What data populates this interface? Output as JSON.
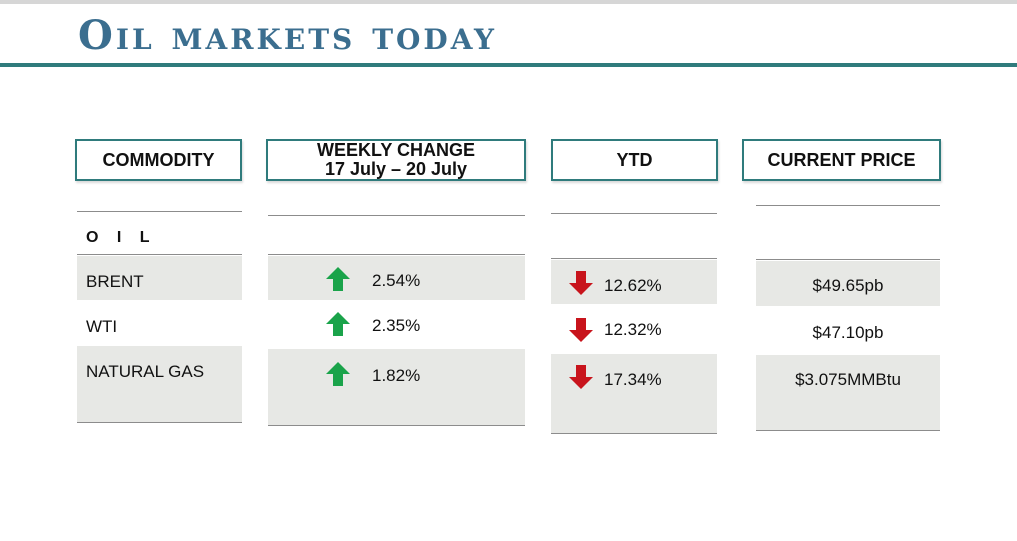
{
  "title": "Oil markets today",
  "headers": {
    "commodity": "COMMODITY",
    "weekly_change": "WEEKLY CHANGE",
    "weekly_period": "17 July – 20 July",
    "ytd": "YTD",
    "current_price": "CURRENT PRICE"
  },
  "section_label": "O I L",
  "rows": [
    {
      "commodity": "BRENT",
      "weekly_change": "2.54%",
      "weekly_direction": "up",
      "ytd": "12.62%",
      "ytd_direction": "down",
      "price": "$49.65pb"
    },
    {
      "commodity": "WTI",
      "weekly_change": "2.35%",
      "weekly_direction": "up",
      "ytd": "12.32%",
      "ytd_direction": "down",
      "price": "$47.10pb"
    },
    {
      "commodity": "NATURAL GAS",
      "weekly_change": "1.82%",
      "weekly_direction": "up",
      "ytd": "17.34%",
      "ytd_direction": "down",
      "price": "$3.075MMBtu"
    }
  ],
  "colors": {
    "title": "#3b6e8f",
    "rule": "#2f7b7c",
    "cell_fill": "#e7e8e5",
    "up_arrow": "#1aa34a",
    "down_arrow": "#c8141c"
  },
  "icons": {
    "up": "green-up-arrow-icon",
    "down": "red-down-arrow-icon"
  }
}
